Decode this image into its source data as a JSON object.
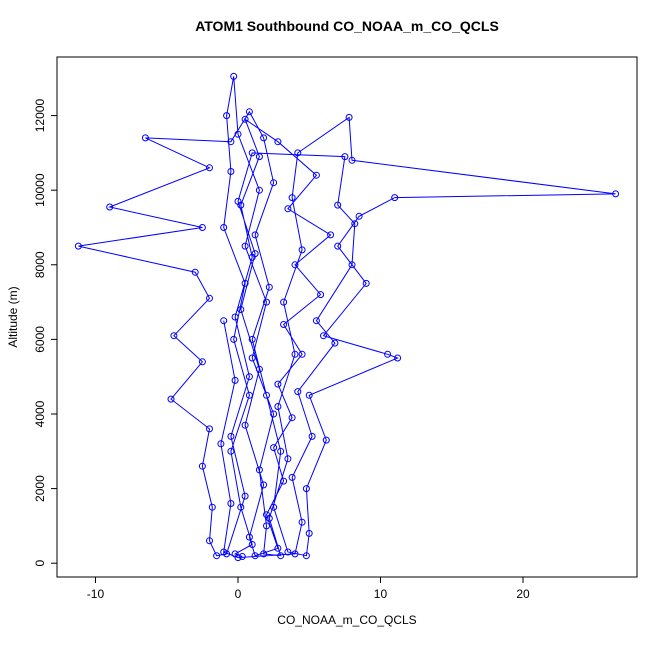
{
  "chart_data": {
    "type": "line",
    "title": "ATOM1 Southbound CO_NOAA_m_CO_QCLS",
    "xlabel": "CO_NOAA_m_CO_QCLS",
    "ylabel": "Altitude (m)",
    "xlim": [
      -12.7,
      28.0
    ],
    "ylim": [
      -370,
      13570
    ],
    "xticks": [
      -10,
      0,
      10,
      20
    ],
    "yticks": [
      0,
      2000,
      4000,
      6000,
      8000,
      10000,
      12000
    ],
    "grid": false,
    "legend": "none",
    "series_color": "#0000ff",
    "marker": "open-circle",
    "points": [
      [
        0.3,
        180
      ],
      [
        -0.2,
        250
      ],
      [
        1.0,
        500
      ],
      [
        0.2,
        1500
      ],
      [
        -0.5,
        3000
      ],
      [
        0.8,
        4500
      ],
      [
        -0.3,
        6000
      ],
      [
        0.5,
        7500
      ],
      [
        -1.0,
        9000
      ],
      [
        -0.5,
        10500
      ],
      [
        -0.8,
        12000
      ],
      [
        -0.3,
        13050
      ],
      [
        0.0,
        11500
      ],
      [
        1.5,
        10000
      ],
      [
        0.5,
        8500
      ],
      [
        2.0,
        7000
      ],
      [
        1.0,
        5500
      ],
      [
        2.5,
        4000
      ],
      [
        1.5,
        2500
      ],
      [
        2.0,
        1000
      ],
      [
        1.8,
        250
      ],
      [
        3.0,
        200
      ],
      [
        2.2,
        1200
      ],
      [
        3.5,
        2800
      ],
      [
        2.8,
        4200
      ],
      [
        4.0,
        5600
      ],
      [
        3.2,
        7000
      ],
      [
        4.5,
        8400
      ],
      [
        3.8,
        9800
      ],
      [
        4.2,
        11000
      ],
      [
        7.8,
        11950
      ],
      [
        8.0,
        10800
      ],
      [
        26.5,
        9900
      ],
      [
        11.0,
        9800
      ],
      [
        8.5,
        9300
      ],
      [
        7.0,
        8500
      ],
      [
        9.0,
        7500
      ],
      [
        6.0,
        6100
      ],
      [
        10.5,
        5600
      ],
      [
        11.2,
        5500
      ],
      [
        5.0,
        4500
      ],
      [
        6.2,
        3300
      ],
      [
        4.8,
        2000
      ],
      [
        5.0,
        800
      ],
      [
        4.8,
        200
      ],
      [
        3.5,
        300
      ],
      [
        2.5,
        1500
      ],
      [
        3.0,
        3000
      ],
      [
        2.0,
        4500
      ],
      [
        1.0,
        6000
      ],
      [
        2.2,
        7400
      ],
      [
        1.2,
        8800
      ],
      [
        2.5,
        10200
      ],
      [
        1.8,
        11400
      ],
      [
        0.8,
        12100
      ],
      [
        -0.5,
        11300
      ],
      [
        -6.5,
        11400
      ],
      [
        -2.0,
        10600
      ],
      [
        -9.0,
        9550
      ],
      [
        -2.5,
        9000
      ],
      [
        -11.2,
        8500
      ],
      [
        -3.0,
        7800
      ],
      [
        -2.0,
        7100
      ],
      [
        -4.5,
        6100
      ],
      [
        -2.5,
        5400
      ],
      [
        -4.7,
        4400
      ],
      [
        -2.0,
        3600
      ],
      [
        -2.5,
        2600
      ],
      [
        -1.8,
        1500
      ],
      [
        -2.0,
        600
      ],
      [
        -1.5,
        200
      ],
      [
        -0.8,
        250
      ],
      [
        0.5,
        1800
      ],
      [
        -0.5,
        3400
      ],
      [
        0.8,
        5000
      ],
      [
        -0.2,
        6600
      ],
      [
        1.0,
        8200
      ],
      [
        0.2,
        9600
      ],
      [
        1.5,
        10900
      ],
      [
        0.5,
        11900
      ],
      [
        2.8,
        11300
      ],
      [
        5.5,
        10400
      ],
      [
        3.5,
        9500
      ],
      [
        6.5,
        8800
      ],
      [
        4.0,
        8000
      ],
      [
        5.8,
        7200
      ],
      [
        3.2,
        6400
      ],
      [
        4.5,
        5600
      ],
      [
        2.8,
        4800
      ],
      [
        3.8,
        3900
      ],
      [
        2.5,
        3100
      ],
      [
        3.2,
        2200
      ],
      [
        2.0,
        1300
      ],
      [
        2.8,
        400
      ],
      [
        1.2,
        200
      ],
      [
        0.8,
        700
      ],
      [
        1.8,
        2100
      ],
      [
        0.5,
        3700
      ],
      [
        1.5,
        5200
      ],
      [
        0.2,
        6800
      ],
      [
        1.2,
        8300
      ],
      [
        0.0,
        9700
      ],
      [
        1.0,
        11000
      ],
      [
        7.5,
        10900
      ],
      [
        7.0,
        9600
      ],
      [
        8.2,
        9100
      ],
      [
        8.0,
        8000
      ],
      [
        5.5,
        6500
      ],
      [
        6.8,
        5900
      ],
      [
        4.2,
        4600
      ],
      [
        5.2,
        3400
      ],
      [
        3.8,
        2300
      ],
      [
        4.5,
        1100
      ],
      [
        4.0,
        250
      ],
      [
        0.0,
        150
      ],
      [
        -1.0,
        300
      ],
      [
        -0.5,
        1600
      ],
      [
        -1.2,
        3200
      ],
      [
        -0.2,
        4900
      ],
      [
        -1.0,
        6500
      ]
    ]
  }
}
